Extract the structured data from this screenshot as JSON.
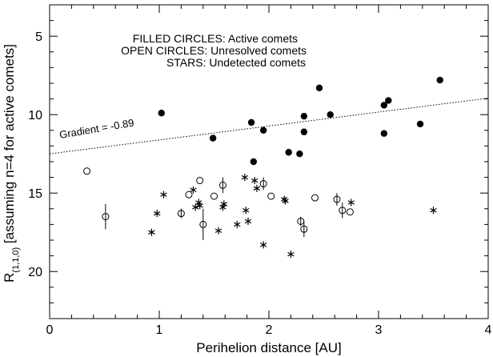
{
  "chart_data": {
    "type": "scatter",
    "xlabel": "Perihelion distance [AU]",
    "ylabel_main": "R",
    "ylabel_sub": "(1,1,0)",
    "ylabel_rest": " [assuming n=4 for active comets]",
    "xlim": [
      0,
      4
    ],
    "ylim": [
      3,
      23
    ],
    "y_inverted": true,
    "x_ticks": [
      0,
      1,
      2,
      3,
      4
    ],
    "x_tick_labels": [
      "0",
      "1",
      "2",
      "3",
      "4"
    ],
    "y_ticks": [
      5,
      10,
      15,
      20
    ],
    "y_tick_labels": [
      "5",
      "10",
      "15",
      "20"
    ],
    "legend": [
      {
        "key": "FILLED CIRCLES",
        "desc": "Active comets"
      },
      {
        "key": "OPEN CIRCLES",
        "desc": "Unresolved comets"
      },
      {
        "key": "STARS",
        "desc": "Undetected comets"
      }
    ],
    "fit_line": {
      "label": "Gradient = -0.89",
      "x": [
        0,
        4
      ],
      "y": [
        12.5,
        8.95
      ],
      "style": "dotted"
    },
    "series": [
      {
        "marker": "filled-circle",
        "points": [
          [
            1.02,
            9.9
          ],
          [
            1.49,
            11.5
          ],
          [
            1.84,
            10.5
          ],
          [
            1.86,
            13.0
          ],
          [
            1.95,
            11.0
          ],
          [
            2.18,
            12.4
          ],
          [
            2.28,
            12.5
          ],
          [
            2.32,
            10.1
          ],
          [
            2.32,
            11.1
          ],
          [
            2.46,
            8.3
          ],
          [
            2.56,
            10.0
          ],
          [
            3.05,
            9.4
          ],
          [
            3.05,
            11.2
          ],
          [
            3.09,
            9.1
          ],
          [
            3.38,
            10.6
          ],
          [
            3.56,
            7.8
          ]
        ]
      },
      {
        "marker": "open-circle",
        "points": [
          [
            0.34,
            13.6,
            0.0
          ],
          [
            0.51,
            16.5,
            0.8
          ],
          [
            1.2,
            16.3,
            0.3
          ],
          [
            1.27,
            15.1,
            0.0
          ],
          [
            1.37,
            14.2,
            0.0
          ],
          [
            1.4,
            17.0,
            1.0
          ],
          [
            1.5,
            15.2,
            0.0
          ],
          [
            1.58,
            14.5,
            0.5
          ],
          [
            1.95,
            14.4,
            0.4
          ],
          [
            2.02,
            15.2,
            0.0
          ],
          [
            2.29,
            16.8,
            0.3
          ],
          [
            2.32,
            17.3,
            0.5
          ],
          [
            2.42,
            15.3,
            0.0
          ],
          [
            2.62,
            15.4,
            0.4
          ],
          [
            2.67,
            16.1,
            0.5
          ],
          [
            2.74,
            16.2,
            0.0
          ]
        ]
      },
      {
        "marker": "star",
        "points": [
          [
            0.93,
            17.5
          ],
          [
            0.98,
            16.3
          ],
          [
            1.04,
            15.1
          ],
          [
            1.31,
            14.8
          ],
          [
            1.33,
            15.9
          ],
          [
            1.36,
            15.6
          ],
          [
            1.37,
            15.8
          ],
          [
            1.54,
            17.4
          ],
          [
            1.59,
            15.7
          ],
          [
            1.58,
            15.9
          ],
          [
            1.71,
            17.0
          ],
          [
            1.78,
            14.0
          ],
          [
            1.79,
            16.1
          ],
          [
            1.81,
            16.8
          ],
          [
            1.87,
            14.2
          ],
          [
            1.89,
            14.7
          ],
          [
            1.95,
            18.3
          ],
          [
            2.14,
            15.4
          ],
          [
            2.15,
            15.5
          ],
          [
            2.2,
            18.9
          ],
          [
            2.75,
            15.6
          ],
          [
            3.5,
            16.1
          ]
        ]
      }
    ]
  }
}
